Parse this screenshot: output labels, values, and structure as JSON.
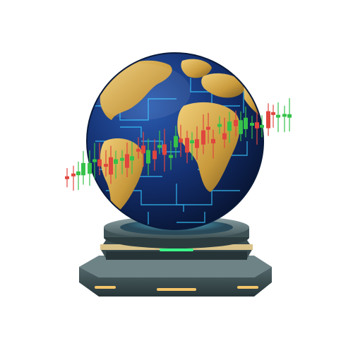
{
  "scene": {
    "subject": "globe-with-candlestick-chart-on-pedestal",
    "colors": {
      "background": "#ffffff",
      "ocean_dark": "#0c1f4a",
      "ocean_mid": "#173a7a",
      "circuit": "#38c8ff",
      "land_gold": "#d2a94e",
      "land_shadow": "#8a6a2a",
      "candle_up": "#36c24a",
      "candle_down": "#e0463e",
      "pedestal_dark": "#2c3b3e",
      "pedestal_mid": "#4f6468",
      "pedestal_light": "#7f9597",
      "gold_trim": "#d9c28a",
      "led_green": "#3cff8a",
      "led_gold": "#f3c46a"
    }
  }
}
